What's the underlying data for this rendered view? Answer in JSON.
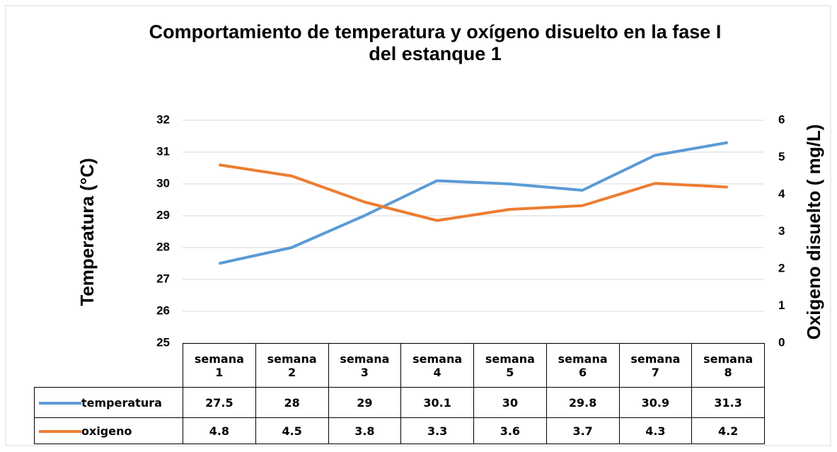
{
  "chart_data": {
    "type": "line",
    "title": [
      "Comportamiento de temperatura y oxígeno disuelto en la fase I",
      "del estanque 1"
    ],
    "ylabel": "Temperatura (°C)",
    "y2label": "Oxigeno disuelto  ( mg/L)",
    "categories": [
      "semana 1",
      "semana 2",
      "semana 3",
      "semana 4",
      "semana 5",
      "semana 6",
      "semana 7",
      "semana 8"
    ],
    "series": [
      {
        "name": "temperatura",
        "color": "#5b9bd5",
        "values": [
          27.5,
          28,
          29,
          30.1,
          30,
          29.8,
          30.9,
          31.3
        ]
      },
      {
        "name": "oxigeno",
        "color": "#ed7d31",
        "axis": "y2",
        "values": [
          4.8,
          4.5,
          3.8,
          3.3,
          3.6,
          3.7,
          4.3,
          4.2
        ]
      }
    ],
    "ylim": [
      25,
      32
    ],
    "yticks": [
      25,
      26,
      27,
      28,
      29,
      30,
      31,
      32
    ],
    "y2lim": [
      0,
      6
    ],
    "y2ticks": [
      0,
      1,
      2,
      3,
      4,
      5,
      6
    ],
    "grid": true
  }
}
